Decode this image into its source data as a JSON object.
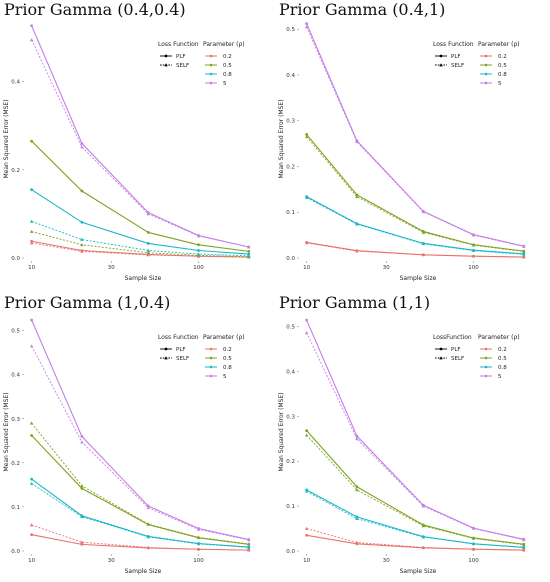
{
  "chart_data": [
    {
      "type": "line",
      "title": "Prior Gamma (0.4,0.4)",
      "xlabel": "Sample Size",
      "ylabel": "Mean Squared Error (MSE)",
      "xscale": "log",
      "xticks": [
        "10",
        "30",
        "100"
      ],
      "yticks": [
        "0.0",
        "0.2",
        "0.4"
      ],
      "ylim": [
        0,
        0.54
      ],
      "x": [
        10,
        20,
        50,
        100,
        200
      ],
      "legend_loss_title": "Loss Function",
      "legend_loss_items": [
        "PLF",
        "SELF"
      ],
      "legend_param_title": "Parameter (ρ)",
      "legend_param_items": [
        "0.2",
        "0.5",
        "0.8",
        "5"
      ],
      "colors": {
        "0.2": "#e8736b",
        "0.5": "#7fa321",
        "0.8": "#1bb7c6",
        "5": "#c47ee8"
      },
      "series": [
        {
          "param": "0.2",
          "loss": "PLF",
          "values": [
            0.038,
            0.017,
            0.008,
            0.004,
            0.002
          ]
        },
        {
          "param": "0.2",
          "loss": "SELF",
          "values": [
            0.034,
            0.015,
            0.007,
            0.004,
            0.002
          ]
        },
        {
          "param": "0.5",
          "loss": "PLF",
          "values": [
            0.265,
            0.152,
            0.058,
            0.03,
            0.015
          ]
        },
        {
          "param": "0.5",
          "loss": "SELF",
          "values": [
            0.06,
            0.03,
            0.012,
            0.006,
            0.003
          ]
        },
        {
          "param": "0.8",
          "loss": "PLF",
          "values": [
            0.155,
            0.081,
            0.033,
            0.017,
            0.009
          ]
        },
        {
          "param": "0.8",
          "loss": "SELF",
          "values": [
            0.083,
            0.042,
            0.017,
            0.009,
            0.005
          ]
        },
        {
          "param": "5",
          "loss": "PLF",
          "values": [
            0.527,
            0.26,
            0.103,
            0.051,
            0.025
          ]
        },
        {
          "param": "5",
          "loss": "SELF",
          "values": [
            0.495,
            0.252,
            0.1,
            0.05,
            0.025
          ]
        }
      ]
    },
    {
      "type": "line",
      "title": "Prior Gamma (0.4,1)",
      "xlabel": "Sample Size",
      "ylabel": "Mean Squared Error (MSE)",
      "xscale": "log",
      "xticks": [
        "10",
        "30",
        "100"
      ],
      "yticks": [
        "0.0",
        "0.1",
        "0.2",
        "0.3",
        "0.4",
        "0.5"
      ],
      "ylim": [
        0,
        0.52
      ],
      "x": [
        10,
        20,
        50,
        100,
        200
      ],
      "legend_loss_title": "Loss Function",
      "legend_loss_items": [
        "PLF",
        "SELF"
      ],
      "legend_param_title": "Parameter (ρ)",
      "legend_param_items": [
        "0.2",
        "0.5",
        "0.8",
        "5"
      ],
      "colors": {
        "0.2": "#e8736b",
        "0.5": "#7fa321",
        "0.8": "#1bb7c6",
        "5": "#c47ee8"
      },
      "series": [
        {
          "param": "0.2",
          "loss": "PLF",
          "values": [
            0.034,
            0.016,
            0.007,
            0.004,
            0.002
          ]
        },
        {
          "param": "0.2",
          "loss": "SELF",
          "values": [
            0.033,
            0.015,
            0.007,
            0.004,
            0.002
          ]
        },
        {
          "param": "0.5",
          "loss": "PLF",
          "values": [
            0.27,
            0.138,
            0.058,
            0.029,
            0.015
          ]
        },
        {
          "param": "0.5",
          "loss": "SELF",
          "values": [
            0.265,
            0.134,
            0.056,
            0.028,
            0.014
          ]
        },
        {
          "param": "0.8",
          "loss": "PLF",
          "values": [
            0.134,
            0.075,
            0.032,
            0.017,
            0.009
          ]
        },
        {
          "param": "0.8",
          "loss": "SELF",
          "values": [
            0.132,
            0.074,
            0.031,
            0.016,
            0.008
          ]
        },
        {
          "param": "5",
          "loss": "PLF",
          "values": [
            0.512,
            0.256,
            0.102,
            0.051,
            0.026
          ]
        },
        {
          "param": "5",
          "loss": "SELF",
          "values": [
            0.505,
            0.254,
            0.101,
            0.05,
            0.025
          ]
        }
      ]
    },
    {
      "type": "line",
      "title": "Prior Gamma (1,0.4)",
      "xlabel": "Sample Size",
      "ylabel": "Mean Squared Error (MSE)",
      "xscale": "log",
      "xticks": [
        "10",
        "30",
        "100"
      ],
      "yticks": [
        "0.0",
        "0.1",
        "0.2",
        "0.3",
        "0.4",
        "0.5"
      ],
      "ylim": [
        0,
        0.54
      ],
      "x": [
        10,
        20,
        50,
        100,
        200
      ],
      "legend_loss_title": "Loss Function",
      "legend_loss_items": [
        "PLF",
        "SELF"
      ],
      "legend_param_title": "Parameter (ρ)",
      "legend_param_items": [
        "0.2",
        "0.5",
        "0.8",
        "5"
      ],
      "colors": {
        "0.2": "#e8736b",
        "0.5": "#7fa321",
        "0.8": "#1bb7c6",
        "5": "#c47ee8"
      },
      "series": [
        {
          "param": "0.2",
          "loss": "PLF",
          "values": [
            0.037,
            0.015,
            0.007,
            0.004,
            0.002
          ]
        },
        {
          "param": "0.2",
          "loss": "SELF",
          "values": [
            0.059,
            0.02,
            0.008,
            0.004,
            0.002
          ]
        },
        {
          "param": "0.5",
          "loss": "PLF",
          "values": [
            0.262,
            0.142,
            0.06,
            0.03,
            0.015
          ]
        },
        {
          "param": "0.5",
          "loss": "SELF",
          "values": [
            0.29,
            0.148,
            0.061,
            0.031,
            0.016
          ]
        },
        {
          "param": "0.8",
          "loss": "PLF",
          "values": [
            0.163,
            0.08,
            0.033,
            0.017,
            0.009
          ]
        },
        {
          "param": "0.8",
          "loss": "SELF",
          "values": [
            0.153,
            0.078,
            0.032,
            0.016,
            0.008
          ]
        },
        {
          "param": "5",
          "loss": "PLF",
          "values": [
            0.524,
            0.26,
            0.102,
            0.051,
            0.026
          ]
        },
        {
          "param": "5",
          "loss": "SELF",
          "values": [
            0.465,
            0.247,
            0.098,
            0.049,
            0.025
          ]
        }
      ]
    },
    {
      "type": "line",
      "title": "Prior Gamma (1,1)",
      "xlabel": "Sample Size",
      "ylabel": "Mean Squared Error (MSE)",
      "xscale": "log",
      "xticks": [
        "10",
        "30",
        "100"
      ],
      "yticks": [
        "0.0",
        "0.1",
        "0.2",
        "0.3",
        "0.4",
        "0.5"
      ],
      "ylim": [
        0,
        0.53
      ],
      "x": [
        10,
        20,
        50,
        100,
        200
      ],
      "legend_loss_title": "LossFunction",
      "legend_loss_items": [
        "PLF",
        "SELF"
      ],
      "legend_param_title": "Parameter (ρ)",
      "legend_param_items": [
        "0.2",
        "0.5",
        "0.8",
        "5"
      ],
      "colors": {
        "0.2": "#e8736b",
        "0.5": "#7fa321",
        "0.8": "#1bb7c6",
        "5": "#c47ee8"
      },
      "series": [
        {
          "param": "0.2",
          "loss": "PLF",
          "values": [
            0.035,
            0.016,
            0.007,
            0.004,
            0.002
          ]
        },
        {
          "param": "0.2",
          "loss": "SELF",
          "values": [
            0.05,
            0.019,
            0.008,
            0.004,
            0.002
          ]
        },
        {
          "param": "0.5",
          "loss": "PLF",
          "values": [
            0.268,
            0.143,
            0.058,
            0.029,
            0.015
          ]
        },
        {
          "param": "0.5",
          "loss": "SELF",
          "values": [
            0.258,
            0.136,
            0.056,
            0.028,
            0.014
          ]
        },
        {
          "param": "0.8",
          "loss": "PLF",
          "values": [
            0.136,
            0.076,
            0.032,
            0.016,
            0.008
          ]
        },
        {
          "param": "0.8",
          "loss": "SELF",
          "values": [
            0.133,
            0.072,
            0.031,
            0.016,
            0.008
          ]
        },
        {
          "param": "5",
          "loss": "PLF",
          "values": [
            0.514,
            0.256,
            0.102,
            0.051,
            0.026
          ]
        },
        {
          "param": "5",
          "loss": "SELF",
          "values": [
            0.486,
            0.25,
            0.1,
            0.05,
            0.025
          ]
        }
      ]
    }
  ]
}
